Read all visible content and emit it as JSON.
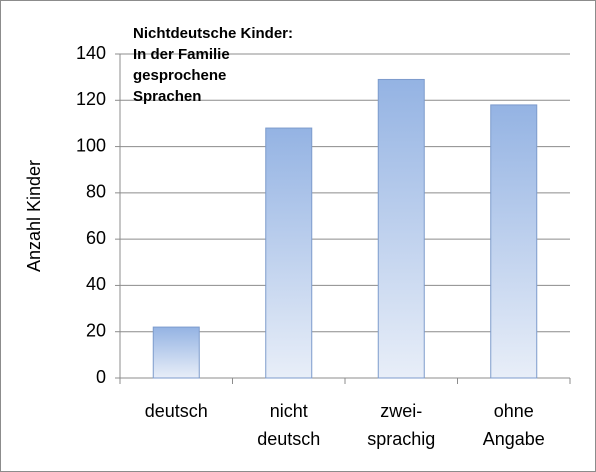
{
  "chart_data": {
    "type": "bar",
    "title": [
      "Nichtdeutsche Kinder:",
      "In der Familie",
      "gesprochene",
      "Sprachen"
    ],
    "y_label": "Anzahl Kinder",
    "categories": [
      [
        "deutsch"
      ],
      [
        "nicht",
        "deutsch"
      ],
      [
        "zwei-",
        "sprachig"
      ],
      [
        "ohne",
        "Angabe"
      ]
    ],
    "values": [
      22,
      108,
      129,
      118
    ],
    "color": "#94b3e3",
    "ylim": [
      0,
      140
    ],
    "yticks": [
      0,
      20,
      40,
      60,
      80,
      100,
      120,
      140
    ],
    "grid": true
  }
}
